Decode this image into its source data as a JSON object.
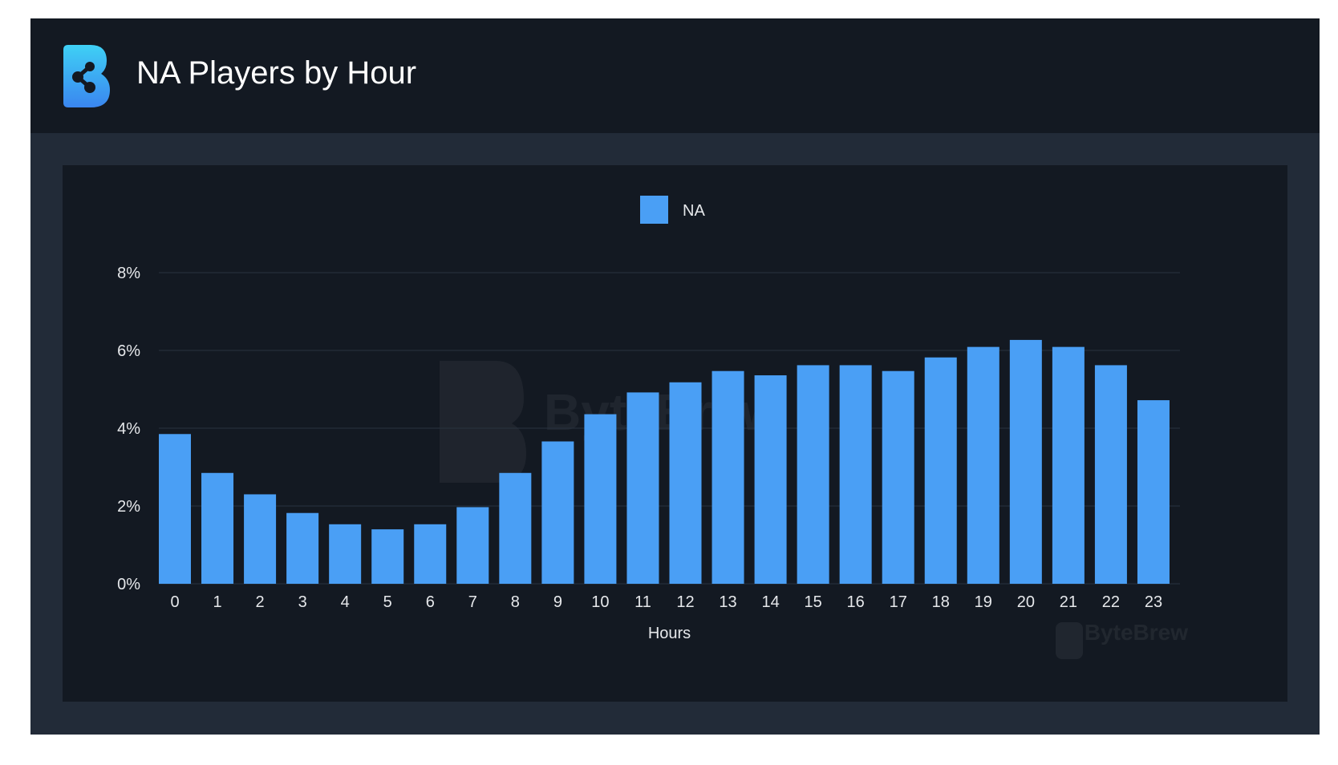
{
  "header": {
    "title": "NA Players by Hour"
  },
  "watermark": {
    "brand": "ByteBrew"
  },
  "colors": {
    "bar": "#4a9ff5",
    "header_bg": "#131922",
    "card_bg": "#222b38",
    "panel_bg": "#131922",
    "text": "#e6e8eb"
  },
  "chart_data": {
    "type": "bar",
    "legend": [
      "NA"
    ],
    "legend_position": "top-center",
    "xlabel": "Hours",
    "ylabel": "",
    "y_tick_labels": [
      "0%",
      "2%",
      "4%",
      "6%",
      "8%"
    ],
    "ylim": [
      0,
      8
    ],
    "grid": true,
    "categories": [
      "0",
      "1",
      "2",
      "3",
      "4",
      "5",
      "6",
      "7",
      "8",
      "9",
      "10",
      "11",
      "12",
      "13",
      "14",
      "15",
      "16",
      "17",
      "18",
      "19",
      "20",
      "21",
      "22",
      "23"
    ],
    "series": [
      {
        "name": "NA",
        "values": [
          3.85,
          2.85,
          2.3,
          1.82,
          1.53,
          1.4,
          1.53,
          1.97,
          2.85,
          3.66,
          4.36,
          4.92,
          5.18,
          5.47,
          5.36,
          5.62,
          5.62,
          5.47,
          5.82,
          6.09,
          6.27,
          6.09,
          5.62,
          4.72
        ]
      }
    ]
  }
}
